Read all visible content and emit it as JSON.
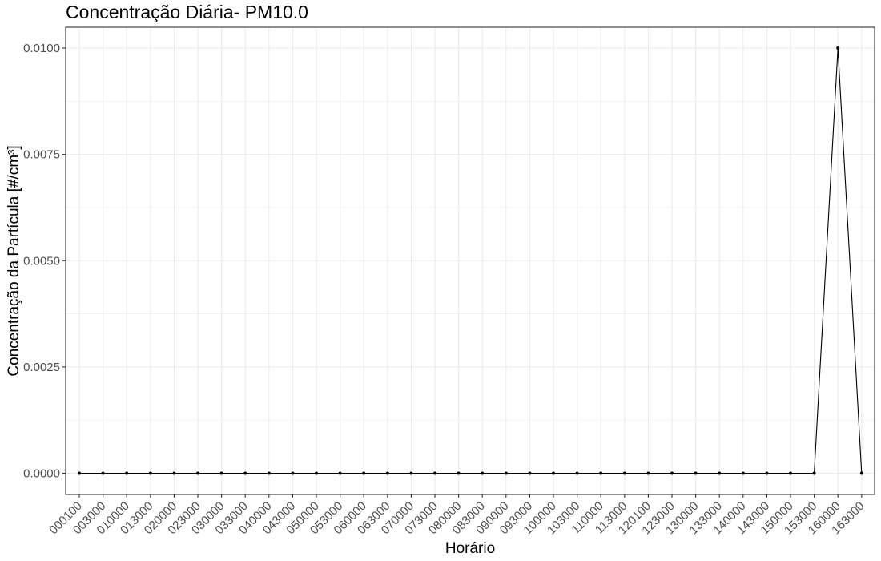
{
  "chart_data": {
    "type": "line",
    "title": "Concentração Diária- PM10.0",
    "xlabel": "Horário",
    "ylabel": "Concentração da Partícula [#/cm³]",
    "ylim": [
      -0.0005,
      0.0105
    ],
    "yticks": [
      "0.0000",
      "0.0025",
      "0.0050",
      "0.0075",
      "0.0100"
    ],
    "ytick_values": [
      0,
      0.0025,
      0.005,
      0.0075,
      0.01
    ],
    "grid": true,
    "categories": [
      "000100",
      "003000",
      "010000",
      "013000",
      "020000",
      "023000",
      "030000",
      "033000",
      "040000",
      "043000",
      "050000",
      "053000",
      "060000",
      "063000",
      "070000",
      "073000",
      "080000",
      "083000",
      "090000",
      "093000",
      "100000",
      "103000",
      "110000",
      "113000",
      "120100",
      "123000",
      "130000",
      "133000",
      "140000",
      "143000",
      "150000",
      "153000",
      "160000",
      "163000"
    ],
    "series": [
      {
        "values": [
          0,
          0,
          0,
          0,
          0,
          0,
          0,
          0,
          0,
          0,
          0,
          0,
          0,
          0,
          0,
          0,
          0,
          0,
          0,
          0,
          0,
          0,
          0,
          0,
          0,
          0,
          0,
          0,
          0,
          0,
          0,
          0,
          0.01,
          0
        ]
      }
    ],
    "colors": {
      "line": "#000000",
      "point": "#000000",
      "grid": "#ebebeb",
      "panel_border": "#333333",
      "tick_text": "#4d4d4d"
    }
  }
}
